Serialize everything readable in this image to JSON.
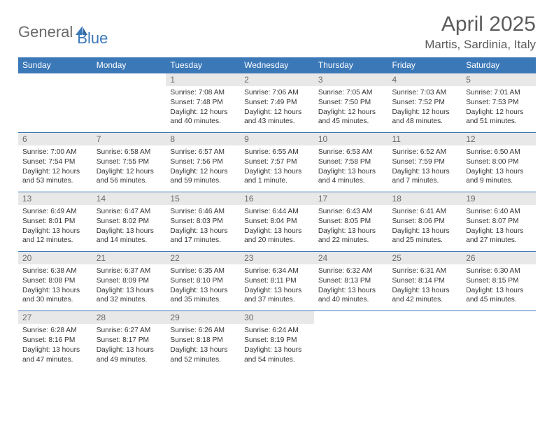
{
  "logo": {
    "text_gray": "General",
    "text_blue": "Blue",
    "gray_color": "#6a6a6a",
    "blue_color": "#3b78b8"
  },
  "title": "April 2025",
  "subtitle": "Martis, Sardinia, Italy",
  "header_bg": "#3b78b8",
  "header_fg": "#ffffff",
  "daynum_bg": "#e8e8e8",
  "daynum_fg": "#6a6a6a",
  "row_border": "#3b78b8",
  "text_color": "#333333",
  "title_color": "#5c5c5c",
  "days": [
    "Sunday",
    "Monday",
    "Tuesday",
    "Wednesday",
    "Thursday",
    "Friday",
    "Saturday"
  ],
  "weeks": [
    [
      {
        "n": "",
        "sr": "",
        "ss": "",
        "dl": ""
      },
      {
        "n": "",
        "sr": "",
        "ss": "",
        "dl": ""
      },
      {
        "n": "1",
        "sr": "Sunrise: 7:08 AM",
        "ss": "Sunset: 7:48 PM",
        "dl": "Daylight: 12 hours and 40 minutes."
      },
      {
        "n": "2",
        "sr": "Sunrise: 7:06 AM",
        "ss": "Sunset: 7:49 PM",
        "dl": "Daylight: 12 hours and 43 minutes."
      },
      {
        "n": "3",
        "sr": "Sunrise: 7:05 AM",
        "ss": "Sunset: 7:50 PM",
        "dl": "Daylight: 12 hours and 45 minutes."
      },
      {
        "n": "4",
        "sr": "Sunrise: 7:03 AM",
        "ss": "Sunset: 7:52 PM",
        "dl": "Daylight: 12 hours and 48 minutes."
      },
      {
        "n": "5",
        "sr": "Sunrise: 7:01 AM",
        "ss": "Sunset: 7:53 PM",
        "dl": "Daylight: 12 hours and 51 minutes."
      }
    ],
    [
      {
        "n": "6",
        "sr": "Sunrise: 7:00 AM",
        "ss": "Sunset: 7:54 PM",
        "dl": "Daylight: 12 hours and 53 minutes."
      },
      {
        "n": "7",
        "sr": "Sunrise: 6:58 AM",
        "ss": "Sunset: 7:55 PM",
        "dl": "Daylight: 12 hours and 56 minutes."
      },
      {
        "n": "8",
        "sr": "Sunrise: 6:57 AM",
        "ss": "Sunset: 7:56 PM",
        "dl": "Daylight: 12 hours and 59 minutes."
      },
      {
        "n": "9",
        "sr": "Sunrise: 6:55 AM",
        "ss": "Sunset: 7:57 PM",
        "dl": "Daylight: 13 hours and 1 minute."
      },
      {
        "n": "10",
        "sr": "Sunrise: 6:53 AM",
        "ss": "Sunset: 7:58 PM",
        "dl": "Daylight: 13 hours and 4 minutes."
      },
      {
        "n": "11",
        "sr": "Sunrise: 6:52 AM",
        "ss": "Sunset: 7:59 PM",
        "dl": "Daylight: 13 hours and 7 minutes."
      },
      {
        "n": "12",
        "sr": "Sunrise: 6:50 AM",
        "ss": "Sunset: 8:00 PM",
        "dl": "Daylight: 13 hours and 9 minutes."
      }
    ],
    [
      {
        "n": "13",
        "sr": "Sunrise: 6:49 AM",
        "ss": "Sunset: 8:01 PM",
        "dl": "Daylight: 13 hours and 12 minutes."
      },
      {
        "n": "14",
        "sr": "Sunrise: 6:47 AM",
        "ss": "Sunset: 8:02 PM",
        "dl": "Daylight: 13 hours and 14 minutes."
      },
      {
        "n": "15",
        "sr": "Sunrise: 6:46 AM",
        "ss": "Sunset: 8:03 PM",
        "dl": "Daylight: 13 hours and 17 minutes."
      },
      {
        "n": "16",
        "sr": "Sunrise: 6:44 AM",
        "ss": "Sunset: 8:04 PM",
        "dl": "Daylight: 13 hours and 20 minutes."
      },
      {
        "n": "17",
        "sr": "Sunrise: 6:43 AM",
        "ss": "Sunset: 8:05 PM",
        "dl": "Daylight: 13 hours and 22 minutes."
      },
      {
        "n": "18",
        "sr": "Sunrise: 6:41 AM",
        "ss": "Sunset: 8:06 PM",
        "dl": "Daylight: 13 hours and 25 minutes."
      },
      {
        "n": "19",
        "sr": "Sunrise: 6:40 AM",
        "ss": "Sunset: 8:07 PM",
        "dl": "Daylight: 13 hours and 27 minutes."
      }
    ],
    [
      {
        "n": "20",
        "sr": "Sunrise: 6:38 AM",
        "ss": "Sunset: 8:08 PM",
        "dl": "Daylight: 13 hours and 30 minutes."
      },
      {
        "n": "21",
        "sr": "Sunrise: 6:37 AM",
        "ss": "Sunset: 8:09 PM",
        "dl": "Daylight: 13 hours and 32 minutes."
      },
      {
        "n": "22",
        "sr": "Sunrise: 6:35 AM",
        "ss": "Sunset: 8:10 PM",
        "dl": "Daylight: 13 hours and 35 minutes."
      },
      {
        "n": "23",
        "sr": "Sunrise: 6:34 AM",
        "ss": "Sunset: 8:11 PM",
        "dl": "Daylight: 13 hours and 37 minutes."
      },
      {
        "n": "24",
        "sr": "Sunrise: 6:32 AM",
        "ss": "Sunset: 8:13 PM",
        "dl": "Daylight: 13 hours and 40 minutes."
      },
      {
        "n": "25",
        "sr": "Sunrise: 6:31 AM",
        "ss": "Sunset: 8:14 PM",
        "dl": "Daylight: 13 hours and 42 minutes."
      },
      {
        "n": "26",
        "sr": "Sunrise: 6:30 AM",
        "ss": "Sunset: 8:15 PM",
        "dl": "Daylight: 13 hours and 45 minutes."
      }
    ],
    [
      {
        "n": "27",
        "sr": "Sunrise: 6:28 AM",
        "ss": "Sunset: 8:16 PM",
        "dl": "Daylight: 13 hours and 47 minutes."
      },
      {
        "n": "28",
        "sr": "Sunrise: 6:27 AM",
        "ss": "Sunset: 8:17 PM",
        "dl": "Daylight: 13 hours and 49 minutes."
      },
      {
        "n": "29",
        "sr": "Sunrise: 6:26 AM",
        "ss": "Sunset: 8:18 PM",
        "dl": "Daylight: 13 hours and 52 minutes."
      },
      {
        "n": "30",
        "sr": "Sunrise: 6:24 AM",
        "ss": "Sunset: 8:19 PM",
        "dl": "Daylight: 13 hours and 54 minutes."
      },
      {
        "n": "",
        "sr": "",
        "ss": "",
        "dl": ""
      },
      {
        "n": "",
        "sr": "",
        "ss": "",
        "dl": ""
      },
      {
        "n": "",
        "sr": "",
        "ss": "",
        "dl": ""
      }
    ]
  ]
}
